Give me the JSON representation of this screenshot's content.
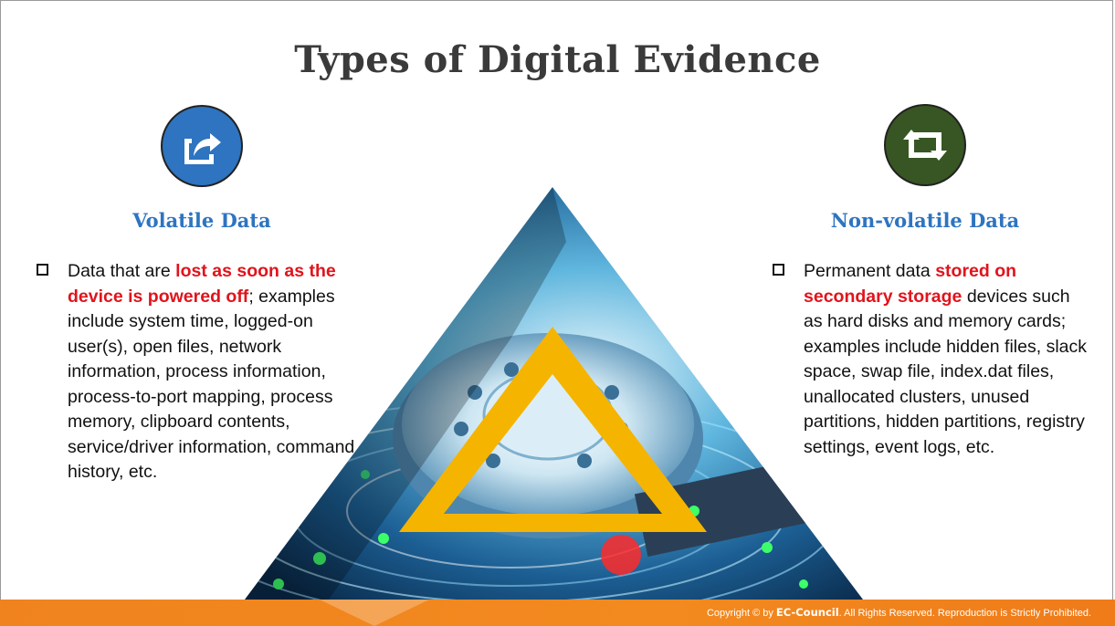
{
  "slide": {
    "title": "Types of Digital Evidence"
  },
  "left": {
    "icon": "share-arrow-icon",
    "heading": "Volatile Data",
    "text_before": "Data that are ",
    "text_highlight": "lost as soon as the device is powered off",
    "text_after": "; examples include system time, logged-on user(s), open files, network information, process information, process-to-port mapping, process memory, clipboard contents, service/driver information, command history, etc."
  },
  "right": {
    "icon": "retweet-icon",
    "heading": "Non-volatile Data",
    "text_before": "Permanent data ",
    "text_highlight": "stored on secondary storage",
    "text_after": " devices such as hard disks and memory cards; examples include hidden files, slack space, swap file, index.dat files, unallocated clusters, unused partitions, hidden partitions, registry settings, event logs, etc."
  },
  "footer": {
    "copyright_prefix": "Copyright © by ",
    "brand": "EC-Council",
    "copyright_suffix": ". All Rights Reserved. Reproduction is Strictly Prohibited."
  },
  "colors": {
    "accent_blue": "#2e74c0",
    "accent_green": "#375623",
    "highlight_red": "#e0141c",
    "footer_orange": "#f28a1f",
    "triangle_yellow": "#f5b400"
  }
}
